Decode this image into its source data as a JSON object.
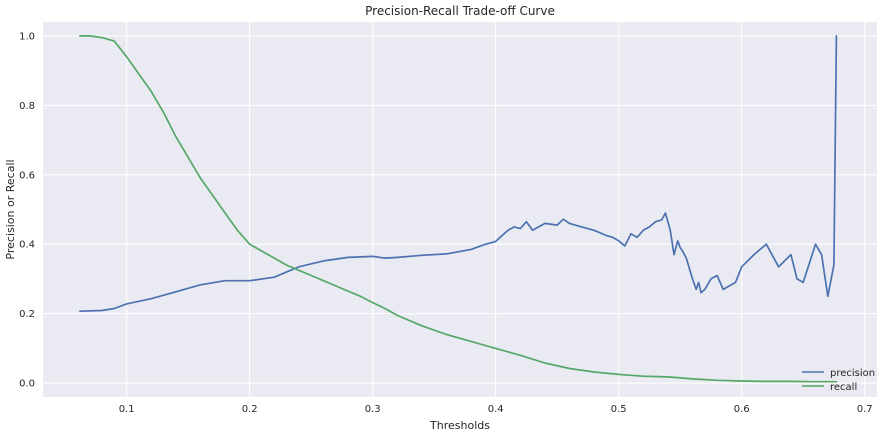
{
  "chart_data": {
    "type": "line",
    "title": "Precision-Recall Trade-off Curve",
    "xlabel": "Thresholds",
    "ylabel": "Precision or Recall",
    "xlim": [
      0.032,
      0.71
    ],
    "ylim": [
      -0.04,
      1.04
    ],
    "x_ticks": [
      0.1,
      0.2,
      0.3,
      0.4,
      0.5,
      0.6,
      0.7
    ],
    "x_tick_labels": [
      "0.1",
      "0.2",
      "0.3",
      "0.4",
      "0.5",
      "0.6",
      "0.7"
    ],
    "y_ticks": [
      0.0,
      0.2,
      0.4,
      0.6,
      0.8,
      1.0
    ],
    "y_tick_labels": [
      "0.0",
      "0.2",
      "0.4",
      "0.6",
      "0.8",
      "1.0"
    ],
    "grid": true,
    "legend_position": "lower-right",
    "series": [
      {
        "name": "precision",
        "color": "#4c72b0",
        "x": [
          0.062,
          0.08,
          0.09,
          0.1,
          0.12,
          0.14,
          0.16,
          0.18,
          0.2,
          0.22,
          0.24,
          0.26,
          0.28,
          0.3,
          0.31,
          0.32,
          0.34,
          0.36,
          0.38,
          0.39,
          0.4,
          0.41,
          0.415,
          0.42,
          0.425,
          0.43,
          0.44,
          0.45,
          0.455,
          0.46,
          0.47,
          0.48,
          0.49,
          0.495,
          0.5,
          0.505,
          0.51,
          0.515,
          0.52,
          0.525,
          0.53,
          0.535,
          0.538,
          0.542,
          0.545,
          0.548,
          0.55,
          0.552,
          0.555,
          0.56,
          0.563,
          0.565,
          0.567,
          0.57,
          0.575,
          0.58,
          0.585,
          0.59,
          0.595,
          0.6,
          0.61,
          0.62,
          0.63,
          0.64,
          0.645,
          0.65,
          0.66,
          0.665,
          0.67,
          0.675,
          0.677
        ],
        "values": [
          0.207,
          0.209,
          0.215,
          0.228,
          0.243,
          0.263,
          0.283,
          0.295,
          0.295,
          0.305,
          0.335,
          0.352,
          0.362,
          0.365,
          0.36,
          0.362,
          0.368,
          0.372,
          0.385,
          0.398,
          0.408,
          0.44,
          0.45,
          0.445,
          0.465,
          0.44,
          0.46,
          0.455,
          0.472,
          0.46,
          0.45,
          0.44,
          0.425,
          0.42,
          0.41,
          0.395,
          0.43,
          0.42,
          0.44,
          0.45,
          0.465,
          0.47,
          0.49,
          0.44,
          0.37,
          0.41,
          0.39,
          0.38,
          0.36,
          0.3,
          0.27,
          0.29,
          0.26,
          0.27,
          0.3,
          0.31,
          0.27,
          0.28,
          0.29,
          0.335,
          0.37,
          0.4,
          0.335,
          0.37,
          0.3,
          0.29,
          0.4,
          0.37,
          0.25,
          0.34,
          1.0
        ]
      },
      {
        "name": "recall",
        "color": "#55a868",
        "x": [
          0.062,
          0.07,
          0.08,
          0.09,
          0.1,
          0.11,
          0.12,
          0.13,
          0.14,
          0.15,
          0.16,
          0.17,
          0.18,
          0.19,
          0.2,
          0.21,
          0.22,
          0.23,
          0.24,
          0.25,
          0.26,
          0.27,
          0.28,
          0.29,
          0.3,
          0.31,
          0.32,
          0.33,
          0.34,
          0.36,
          0.38,
          0.4,
          0.42,
          0.44,
          0.46,
          0.48,
          0.5,
          0.52,
          0.54,
          0.56,
          0.58,
          0.6,
          0.62,
          0.64,
          0.66,
          0.677
        ],
        "values": [
          1.0,
          1.0,
          0.995,
          0.985,
          0.94,
          0.89,
          0.84,
          0.78,
          0.71,
          0.65,
          0.59,
          0.54,
          0.49,
          0.44,
          0.4,
          0.38,
          0.36,
          0.34,
          0.325,
          0.31,
          0.295,
          0.28,
          0.265,
          0.25,
          0.232,
          0.215,
          0.195,
          0.18,
          0.165,
          0.14,
          0.12,
          0.1,
          0.08,
          0.058,
          0.042,
          0.032,
          0.025,
          0.02,
          0.018,
          0.012,
          0.008,
          0.006,
          0.005,
          0.005,
          0.004,
          0.004
        ]
      }
    ]
  }
}
